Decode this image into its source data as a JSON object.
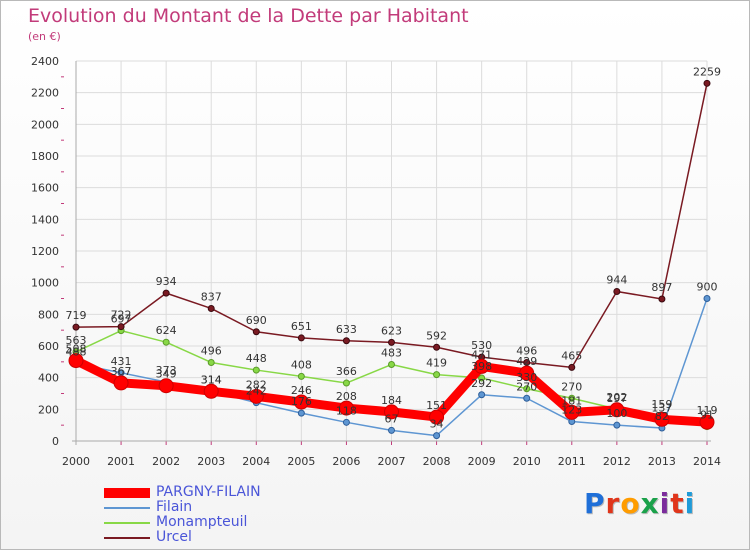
{
  "header": {
    "title": "Evolution du Montant de la Dette par Habitant",
    "subtitle": "(en €)"
  },
  "logo": {
    "text": "Proxiti",
    "letter_colors": [
      "#1f6fd8",
      "#e0351b",
      "#ff9c00",
      "#1aa14a",
      "#7b2c9c",
      "#e0351b",
      "#1f9bd8"
    ]
  },
  "chart_data": {
    "type": "line",
    "title": "Evolution du Montant de la Dette par Habitant",
    "ylabel": "(en €)",
    "xlabel": "",
    "x": [
      "2000",
      "2001",
      "2002",
      "2003",
      "2004",
      "2005",
      "2006",
      "2007",
      "2008",
      "2009",
      "2010",
      "2011",
      "2012",
      "2013",
      "2014"
    ],
    "ylim": [
      0,
      2400
    ],
    "yticks": [
      0,
      200,
      400,
      600,
      800,
      1000,
      1200,
      1400,
      1600,
      1800,
      2000,
      2200,
      2400
    ],
    "grid": true,
    "legend_position": "bottom-left",
    "series": [
      {
        "name": "PARGNY-FILAIN",
        "color": "#ff0000",
        "values": [
          508,
          367,
          349,
          314,
          282,
          246,
          208,
          184,
          151,
          471,
          429,
          181,
          197,
          137,
          119
        ]
      },
      {
        "name": "Filain",
        "color": "#5e96d2",
        "values": [
          488,
          431,
          373,
          314,
          242,
          176,
          118,
          67,
          34,
          292,
          270,
          123,
          100,
          82,
          900
        ]
      },
      {
        "name": "Monampteuil",
        "color": "#88d846",
        "values": [
          563,
          697,
          624,
          496,
          448,
          408,
          366,
          483,
          419,
          398,
          330,
          270,
          202,
          159,
          91
        ]
      },
      {
        "name": "Urcel",
        "color": "#7a1a22",
        "values": [
          719,
          722,
          934,
          837,
          690,
          651,
          633,
          623,
          592,
          530,
          496,
          465,
          944,
          897,
          2259
        ]
      }
    ]
  }
}
